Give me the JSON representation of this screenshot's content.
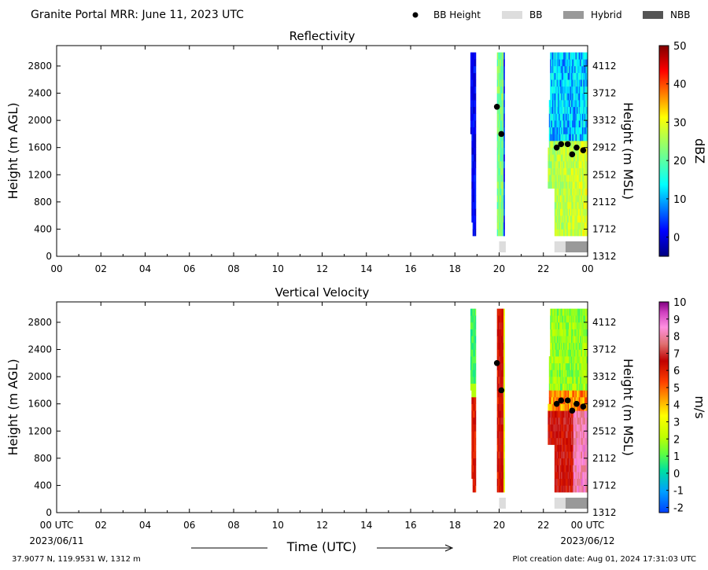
{
  "header": {
    "title": "Granite Portal MRR:  June 11, 2023 UTC",
    "legend": [
      {
        "label": "BB Height",
        "kind": "dot",
        "color": "#000000"
      },
      {
        "label": "BB",
        "kind": "box",
        "color": "#dddddd"
      },
      {
        "label": "Hybrid",
        "kind": "box",
        "color": "#999999"
      },
      {
        "label": "NBB",
        "kind": "box",
        "color": "#555555"
      }
    ]
  },
  "footer": {
    "location": "37.9077 N, 119.9531 W, 1312 m",
    "created": "Plot creation date: Aug 01, 2024 17:31:03 UTC"
  },
  "chart_data": [
    {
      "type": "heatmap",
      "title": "Reflectivity",
      "xlabel": "",
      "ylabel": "Height (m AGL)",
      "y2label": "Height (m MSL)",
      "xlim": [
        0,
        24
      ],
      "ylim": [
        0,
        3100
      ],
      "x_ticks": [
        "00",
        "02",
        "04",
        "06",
        "08",
        "10",
        "12",
        "14",
        "16",
        "18",
        "20",
        "22",
        "00"
      ],
      "y_ticks": [
        0,
        400,
        800,
        1200,
        1600,
        2000,
        2400,
        2800
      ],
      "y2_ticks": [
        "1312",
        "1712",
        "2112",
        "2512",
        "2912",
        "3312",
        "3712",
        "4112"
      ],
      "colorbar": {
        "label": "dBZ",
        "range": [
          -5,
          50
        ],
        "ticks": [
          0,
          10,
          20,
          30,
          40,
          50
        ],
        "scheme": "jet"
      },
      "bb_height_points": [
        {
          "x": 19.9,
          "y": 2200
        },
        {
          "x": 20.1,
          "y": 1800
        },
        {
          "x": 22.6,
          "y": 1600
        },
        {
          "x": 22.8,
          "y": 1650
        },
        {
          "x": 23.1,
          "y": 1650
        },
        {
          "x": 23.3,
          "y": 1500
        },
        {
          "x": 23.5,
          "y": 1600
        },
        {
          "x": 23.8,
          "y": 1560
        }
      ],
      "bb_type_bar": [
        {
          "start": 20.0,
          "end": 20.3,
          "type": "BB"
        },
        {
          "start": 22.5,
          "end": 23.0,
          "type": "BB"
        },
        {
          "start": 23.0,
          "end": 24.0,
          "type": "Hybrid"
        }
      ]
    },
    {
      "type": "heatmap",
      "title": "Vertical Velocity",
      "xlabel": "Time (UTC)",
      "ylabel": "Height (m AGL)",
      "y2label": "Height (m MSL)",
      "xlim": [
        0,
        24
      ],
      "ylim": [
        0,
        3100
      ],
      "x_ticks": [
        "00 UTC",
        "02",
        "04",
        "06",
        "08",
        "10",
        "12",
        "14",
        "16",
        "18",
        "20",
        "22",
        "00 UTC"
      ],
      "x_date_labels": {
        "start": "2023/06/11",
        "end": "2023/06/12"
      },
      "y_ticks": [
        0,
        400,
        800,
        1200,
        1600,
        2000,
        2400,
        2800
      ],
      "y2_ticks": [
        "1312",
        "1712",
        "2112",
        "2512",
        "2912",
        "3312",
        "3712",
        "4112"
      ],
      "colorbar": {
        "label": "m/s",
        "range": [
          -2.3,
          10
        ],
        "ticks": [
          -2,
          -1,
          0,
          1,
          2,
          3,
          4,
          5,
          6,
          7,
          8,
          9,
          10
        ],
        "scheme": "velocity"
      },
      "bb_height_points": [
        {
          "x": 19.9,
          "y": 2200
        },
        {
          "x": 20.1,
          "y": 1800
        },
        {
          "x": 22.6,
          "y": 1600
        },
        {
          "x": 22.8,
          "y": 1650
        },
        {
          "x": 23.1,
          "y": 1650
        },
        {
          "x": 23.3,
          "y": 1500
        },
        {
          "x": 23.5,
          "y": 1600
        },
        {
          "x": 23.8,
          "y": 1560
        }
      ],
      "bb_type_bar": [
        {
          "start": 20.0,
          "end": 20.3,
          "type": "BB"
        },
        {
          "start": 22.5,
          "end": 23.0,
          "type": "BB"
        },
        {
          "start": 23.0,
          "end": 24.0,
          "type": "Hybrid"
        }
      ]
    }
  ]
}
